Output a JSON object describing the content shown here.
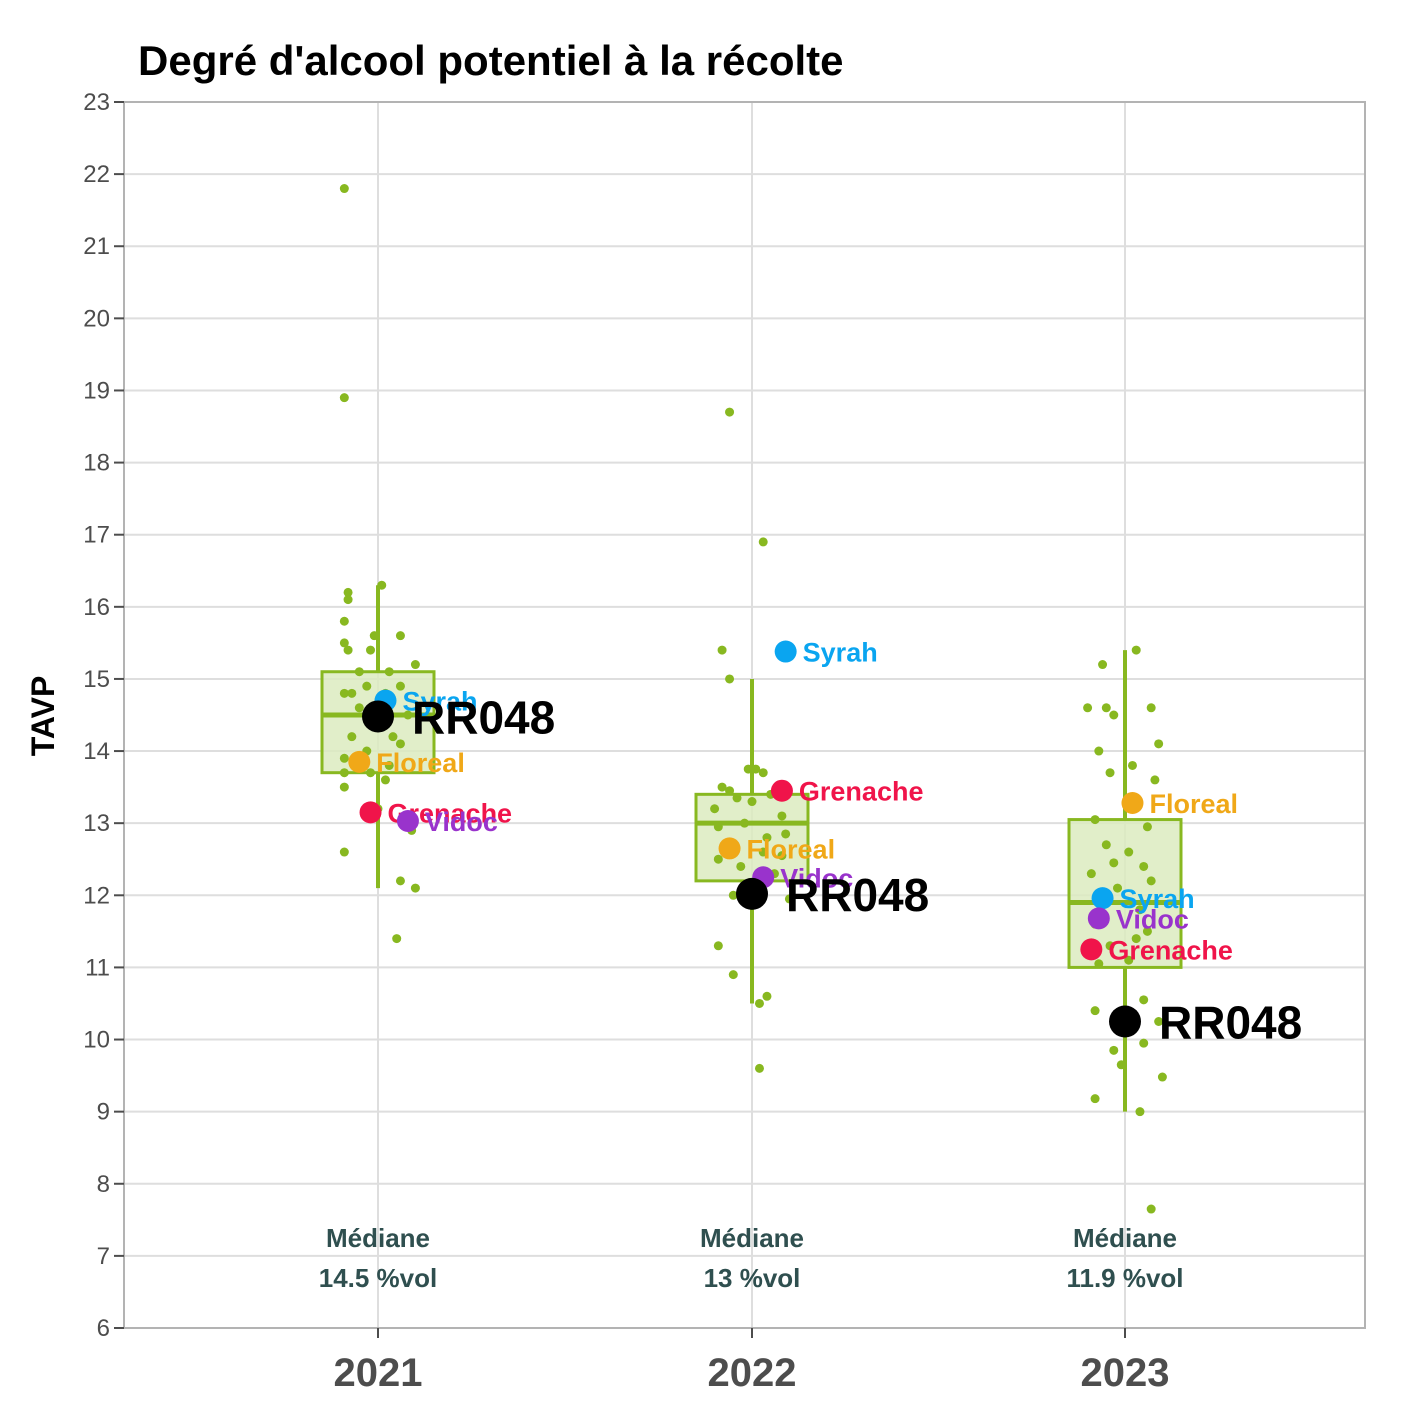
{
  "chart_data": {
    "type": "box",
    "title": "Degré d'alcool potentiel à la récolte",
    "ylabel": "TAVP",
    "xlabel": "",
    "ylim": [
      6,
      23
    ],
    "yticks": [
      6,
      7,
      8,
      9,
      10,
      11,
      12,
      13,
      14,
      15,
      16,
      17,
      18,
      19,
      20,
      21,
      22,
      23
    ],
    "grid": true,
    "colors": {
      "box_fill": "#dcebc0",
      "box_stroke": "#88b820",
      "points": "#88b820",
      "Syrah": "#0aa5f0",
      "Floreal": "#f0a818",
      "Grenache": "#f0144a",
      "Vidoc": "#9933cc",
      "RR048": "#000000"
    },
    "categories": [
      "2021",
      "2022",
      "2023"
    ],
    "groups": [
      {
        "year": "2021",
        "box": {
          "whisker_low": 12.1,
          "q1": 13.7,
          "median": 14.5,
          "q3": 15.1,
          "whisker_high": 16.3
        },
        "median_line1": "Médiane",
        "median_line2": "14.5 %vol",
        "points": [
          {
            "x": -0.09,
            "y": 21.8
          },
          {
            "x": -0.09,
            "y": 18.9
          },
          {
            "x": 0.01,
            "y": 16.3
          },
          {
            "x": -0.08,
            "y": 16.2
          },
          {
            "x": -0.08,
            "y": 16.1
          },
          {
            "x": -0.09,
            "y": 15.8
          },
          {
            "x": -0.01,
            "y": 15.6
          },
          {
            "x": 0.06,
            "y": 15.6
          },
          {
            "x": -0.09,
            "y": 15.5
          },
          {
            "x": -0.08,
            "y": 15.4
          },
          {
            "x": -0.02,
            "y": 15.4
          },
          {
            "x": 0.1,
            "y": 15.2
          },
          {
            "x": -0.05,
            "y": 15.1
          },
          {
            "x": 0.03,
            "y": 15.1
          },
          {
            "x": -0.03,
            "y": 14.9
          },
          {
            "x": 0.06,
            "y": 14.9
          },
          {
            "x": -0.09,
            "y": 14.8
          },
          {
            "x": -0.07,
            "y": 14.8
          },
          {
            "x": 0.02,
            "y": 14.8
          },
          {
            "x": -0.05,
            "y": 14.6
          },
          {
            "x": 0.08,
            "y": 14.5
          },
          {
            "x": 0.0,
            "y": 14.4
          },
          {
            "x": -0.07,
            "y": 14.2
          },
          {
            "x": 0.04,
            "y": 14.2
          },
          {
            "x": 0.06,
            "y": 14.1
          },
          {
            "x": -0.03,
            "y": 14.0
          },
          {
            "x": -0.09,
            "y": 13.9
          },
          {
            "x": 0.03,
            "y": 13.8
          },
          {
            "x": -0.09,
            "y": 13.7
          },
          {
            "x": -0.02,
            "y": 13.7
          },
          {
            "x": 0.02,
            "y": 13.6
          },
          {
            "x": -0.09,
            "y": 13.5
          },
          {
            "x": 0.0,
            "y": 13.2
          },
          {
            "x": 0.09,
            "y": 12.9
          },
          {
            "x": -0.09,
            "y": 12.6
          },
          {
            "x": 0.06,
            "y": 12.2
          },
          {
            "x": 0.1,
            "y": 12.1
          },
          {
            "x": 0.05,
            "y": 11.4
          }
        ],
        "refs": [
          {
            "name": "Syrah",
            "x": 0.02,
            "y": 14.7
          },
          {
            "name": "Floreal",
            "x": -0.05,
            "y": 13.85
          },
          {
            "name": "Grenache",
            "x": -0.02,
            "y": 13.15
          },
          {
            "name": "Vidoc",
            "x": 0.08,
            "y": 13.03
          }
        ],
        "main": {
          "name": "RR048",
          "x": 0.0,
          "y": 14.48
        }
      },
      {
        "year": "2022",
        "box": {
          "whisker_low": 10.5,
          "q1": 12.2,
          "median": 13.0,
          "q3": 13.4,
          "whisker_high": 15.0
        },
        "median_line1": "Médiane",
        "median_line2": "13 %vol",
        "points": [
          {
            "x": -0.06,
            "y": 18.7
          },
          {
            "x": 0.03,
            "y": 16.9
          },
          {
            "x": -0.08,
            "y": 15.4
          },
          {
            "x": -0.06,
            "y": 15.0
          },
          {
            "x": -0.01,
            "y": 13.75
          },
          {
            "x": 0.01,
            "y": 13.75
          },
          {
            "x": 0.03,
            "y": 13.7
          },
          {
            "x": -0.08,
            "y": 13.5
          },
          {
            "x": -0.06,
            "y": 13.45
          },
          {
            "x": 0.05,
            "y": 13.4
          },
          {
            "x": -0.04,
            "y": 13.35
          },
          {
            "x": 0.0,
            "y": 13.3
          },
          {
            "x": -0.1,
            "y": 13.2
          },
          {
            "x": 0.08,
            "y": 13.1
          },
          {
            "x": -0.02,
            "y": 13.0
          },
          {
            "x": -0.09,
            "y": 12.95
          },
          {
            "x": 0.09,
            "y": 12.85
          },
          {
            "x": 0.04,
            "y": 12.8
          },
          {
            "x": -0.07,
            "y": 12.7
          },
          {
            "x": 0.03,
            "y": 12.6
          },
          {
            "x": -0.09,
            "y": 12.5
          },
          {
            "x": 0.08,
            "y": 12.55
          },
          {
            "x": -0.03,
            "y": 12.4
          },
          {
            "x": 0.06,
            "y": 12.3
          },
          {
            "x": -0.05,
            "y": 12.0
          },
          {
            "x": 0.1,
            "y": 11.95
          },
          {
            "x": -0.09,
            "y": 11.3
          },
          {
            "x": -0.05,
            "y": 10.9
          },
          {
            "x": 0.04,
            "y": 10.6
          },
          {
            "x": 0.02,
            "y": 10.5
          },
          {
            "x": 0.02,
            "y": 9.6
          }
        ],
        "refs": [
          {
            "name": "Syrah",
            "x": 0.09,
            "y": 15.38
          },
          {
            "name": "Grenache",
            "x": 0.08,
            "y": 13.45
          },
          {
            "name": "Floreal",
            "x": -0.06,
            "y": 12.65
          },
          {
            "name": "Vidoc",
            "x": 0.03,
            "y": 12.25
          }
        ],
        "main": {
          "name": "RR048",
          "x": 0.0,
          "y": 12.02
        }
      },
      {
        "year": "2023",
        "box": {
          "whisker_low": 9.0,
          "q1": 11.0,
          "median": 11.9,
          "q3": 13.05,
          "whisker_high": 15.4
        },
        "median_line1": "Médiane",
        "median_line2": "11.9 %vol",
        "points": [
          {
            "x": 0.03,
            "y": 15.4
          },
          {
            "x": -0.06,
            "y": 15.2
          },
          {
            "x": -0.1,
            "y": 14.6
          },
          {
            "x": -0.05,
            "y": 14.6
          },
          {
            "x": 0.07,
            "y": 14.6
          },
          {
            "x": -0.03,
            "y": 14.5
          },
          {
            "x": 0.09,
            "y": 14.1
          },
          {
            "x": -0.07,
            "y": 14.0
          },
          {
            "x": 0.02,
            "y": 13.8
          },
          {
            "x": -0.04,
            "y": 13.7
          },
          {
            "x": 0.08,
            "y": 13.6
          },
          {
            "x": -0.08,
            "y": 13.05
          },
          {
            "x": 0.06,
            "y": 12.95
          },
          {
            "x": -0.05,
            "y": 12.7
          },
          {
            "x": 0.01,
            "y": 12.6
          },
          {
            "x": -0.03,
            "y": 12.45
          },
          {
            "x": 0.05,
            "y": 12.4
          },
          {
            "x": -0.09,
            "y": 12.3
          },
          {
            "x": 0.07,
            "y": 12.2
          },
          {
            "x": -0.02,
            "y": 12.1
          },
          {
            "x": -0.06,
            "y": 11.95
          },
          {
            "x": 0.04,
            "y": 11.8
          },
          {
            "x": -0.08,
            "y": 11.6
          },
          {
            "x": 0.06,
            "y": 11.5
          },
          {
            "x": 0.03,
            "y": 11.4
          },
          {
            "x": -0.04,
            "y": 11.3
          },
          {
            "x": 0.01,
            "y": 11.1
          },
          {
            "x": -0.07,
            "y": 11.05
          },
          {
            "x": 0.05,
            "y": 10.55
          },
          {
            "x": -0.08,
            "y": 10.4
          },
          {
            "x": 0.09,
            "y": 10.25
          },
          {
            "x": 0.05,
            "y": 9.95
          },
          {
            "x": -0.03,
            "y": 9.85
          },
          {
            "x": -0.01,
            "y": 9.65
          },
          {
            "x": 0.1,
            "y": 9.48
          },
          {
            "x": -0.08,
            "y": 9.18
          },
          {
            "x": 0.04,
            "y": 9.0
          },
          {
            "x": 0.07,
            "y": 7.65
          }
        ],
        "refs": [
          {
            "name": "Floreal",
            "x": 0.02,
            "y": 13.28
          },
          {
            "name": "Syrah",
            "x": -0.06,
            "y": 11.96
          },
          {
            "name": "Vidoc",
            "x": -0.07,
            "y": 11.68
          },
          {
            "name": "Grenache",
            "x": -0.09,
            "y": 11.25
          }
        ],
        "main": {
          "name": "RR048",
          "x": 0.0,
          "y": 10.25
        }
      }
    ]
  }
}
